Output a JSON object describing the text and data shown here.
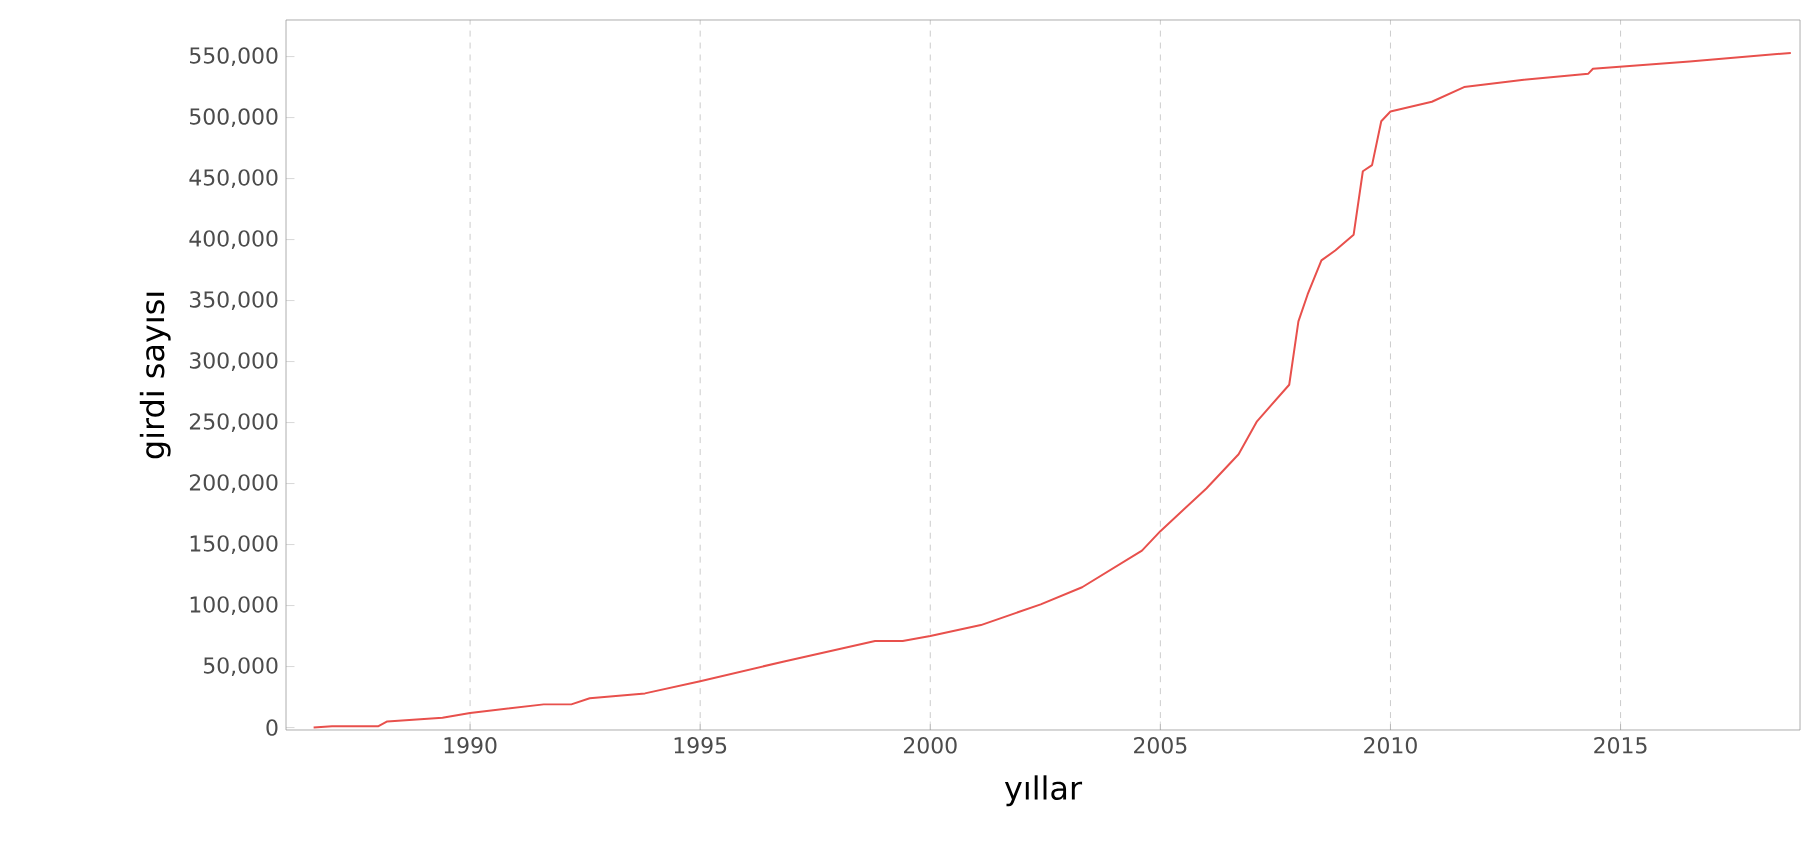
{
  "chart_data": {
    "type": "line",
    "xlabel": "yıllar",
    "ylabel": "girdi sayısı",
    "xlim": [
      1986,
      2018.9
    ],
    "ylim": [
      -2000,
      580000
    ],
    "xticks": [
      1990,
      1995,
      2000,
      2005,
      2010,
      2015
    ],
    "yticks": [
      {
        "value": 0,
        "label": "0"
      },
      {
        "value": 50000,
        "label": "50,000"
      },
      {
        "value": 100000,
        "label": "100,000"
      },
      {
        "value": 150000,
        "label": "150,000"
      },
      {
        "value": 200000,
        "label": "200,000"
      },
      {
        "value": 250000,
        "label": "250,000"
      },
      {
        "value": 300000,
        "label": "300,000"
      },
      {
        "value": 350000,
        "label": "350,000"
      },
      {
        "value": 400000,
        "label": "400,000"
      },
      {
        "value": 450000,
        "label": "450,000"
      },
      {
        "value": 500000,
        "label": "500,000"
      },
      {
        "value": 550000,
        "label": "550,000"
      }
    ],
    "grid": "x",
    "marker": "none",
    "line_style": "solid",
    "series": [
      {
        "color": "#e8504c",
        "x": [
          1986.6,
          1987.0,
          1988.0,
          1988.2,
          1989.4,
          1990.0,
          1991.6,
          1992.2,
          1992.6,
          1993.8,
          1995.0,
          1996.8,
          1998.8,
          1999.4,
          2000.0,
          2001.1,
          2002.4,
          2003.3,
          2004.6,
          2005.0,
          2006.0,
          2006.7,
          2007.1,
          2007.8,
          2008.0,
          2008.2,
          2008.5,
          2008.8,
          2009.2,
          2009.4,
          2009.6,
          2009.8,
          2010.0,
          2010.9,
          2011.6,
          2012.9,
          2014.3,
          2014.4,
          2016.5,
          2018.7
        ],
        "values": [
          0,
          1000,
          1000,
          5000,
          8000,
          12000,
          19000,
          19000,
          24000,
          28000,
          38000,
          54000,
          71000,
          71000,
          75000,
          84000,
          101000,
          115000,
          145000,
          161000,
          196000,
          224000,
          251000,
          281000,
          333000,
          355000,
          383000,
          391000,
          404000,
          456000,
          461000,
          497000,
          505000,
          513000,
          525000,
          531000,
          536000,
          540000,
          546000,
          553000
        ]
      }
    ]
  }
}
